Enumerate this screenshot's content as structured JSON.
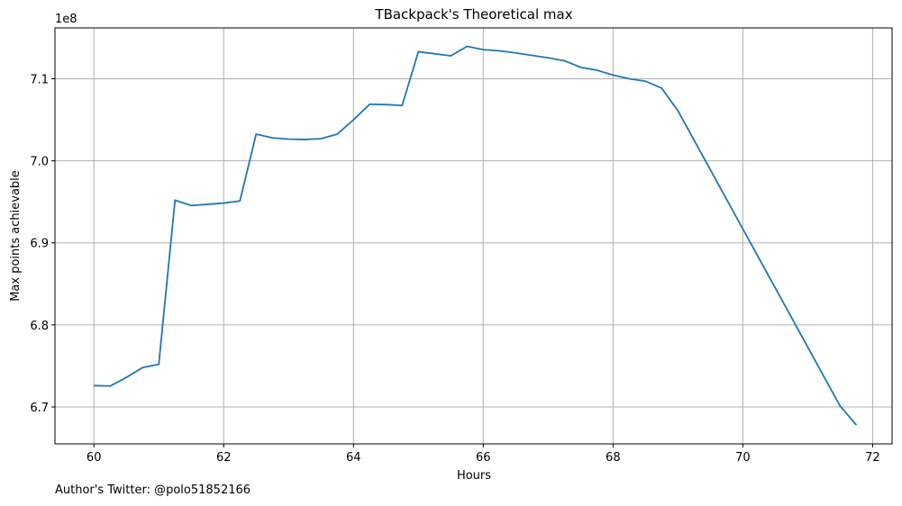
{
  "chart_data": {
    "type": "line",
    "title": "TBackpack's Theoretical max",
    "xlabel": "Hours",
    "ylabel": "Max points achievable",
    "y_offset_label": "1e8",
    "xlim": [
      59.4,
      72.3
    ],
    "ylim": [
      665500000,
      716200000
    ],
    "x_ticks": [
      60,
      62,
      64,
      66,
      68,
      70,
      72
    ],
    "y_ticks": [
      670000000,
      680000000,
      690000000,
      700000000,
      710000000
    ],
    "x_tick_labels": [
      "60",
      "62",
      "64",
      "66",
      "68",
      "70",
      "72"
    ],
    "y_tick_labels": [
      "6.7",
      "6.8",
      "6.9",
      "7.0",
      "7.1"
    ],
    "grid": true,
    "color": "#1f77b4",
    "series": [
      {
        "x": [
          60.0,
          60.25,
          60.5,
          60.75,
          61.0,
          61.25,
          61.5,
          61.75,
          62.0,
          62.25,
          62.5,
          62.75,
          63.0,
          63.25,
          63.5,
          63.75,
          64.0,
          64.25,
          64.5,
          64.75,
          65.0,
          65.25,
          65.5,
          65.75,
          66.0,
          66.25,
          66.5,
          66.75,
          67.0,
          67.25,
          67.5,
          67.75,
          68.0,
          68.25,
          68.5,
          68.75,
          69.0,
          69.25,
          69.5,
          69.75,
          70.0,
          70.25,
          70.5,
          70.75,
          71.0,
          71.25,
          71.5,
          71.75
        ],
        "y": [
          672600000,
          672550000,
          673600000,
          674800000,
          675200000,
          695200000,
          694550000,
          694700000,
          694850000,
          695100000,
          703250000,
          702800000,
          702650000,
          702600000,
          702700000,
          703250000,
          705000000,
          706900000,
          706850000,
          706750000,
          713300000,
          713050000,
          712800000,
          713950000,
          713550000,
          713400000,
          713150000,
          712850000,
          712550000,
          712200000,
          711400000,
          711050000,
          710450000,
          710000000,
          709700000,
          708850000,
          706100000,
          702500000,
          698900000,
          695300000,
          691700000,
          688100000,
          684500000,
          680900000,
          677300000,
          673700000,
          670100000,
          667800000
        ]
      }
    ]
  },
  "footnote": "Author's Twitter: @polo51852166"
}
